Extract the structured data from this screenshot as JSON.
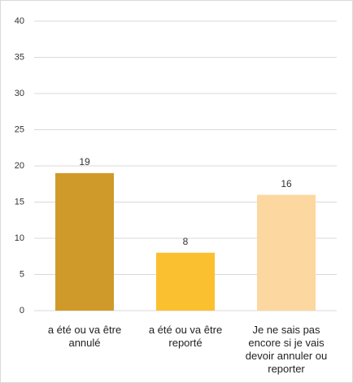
{
  "chart_data": {
    "type": "bar",
    "categories": [
      "a été ou va être annulé",
      "a été ou va être reporté",
      "Je ne sais pas encore si je vais devoir annuler ou reporter"
    ],
    "values": [
      19,
      8,
      16
    ],
    "colors": [
      "#d09a2a",
      "#fbc02f",
      "#fcd7a0"
    ],
    "ylim": [
      0,
      40
    ],
    "yticks": [
      0,
      5,
      10,
      15,
      20,
      25,
      30,
      35,
      40
    ],
    "grid": true
  }
}
